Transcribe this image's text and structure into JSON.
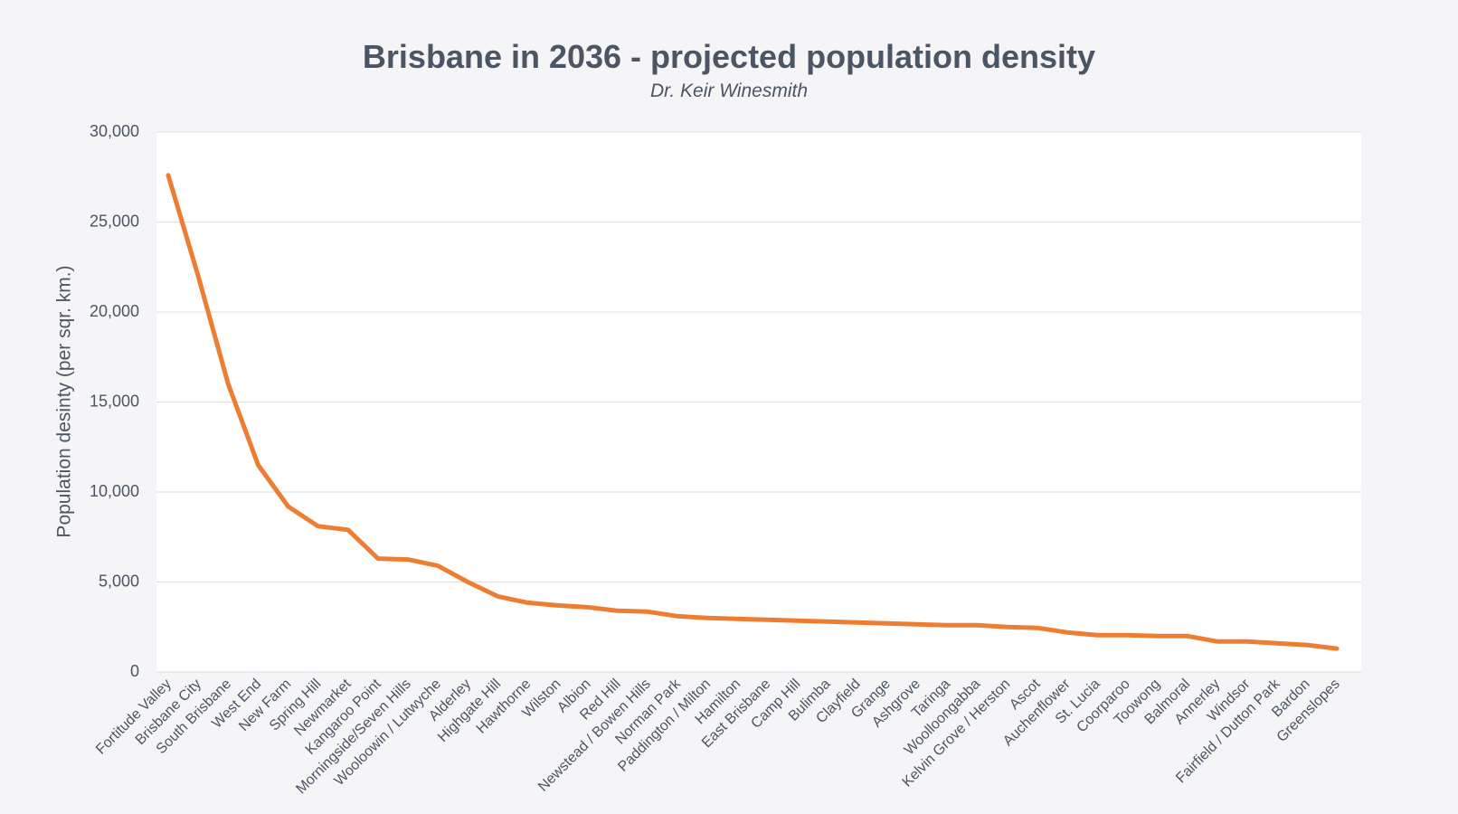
{
  "chart_data": {
    "type": "line",
    "title": "Brisbane in 2036 - projected population density",
    "subtitle": "Dr. Keir Winesmith",
    "xlabel": "",
    "ylabel": "Population desinty (per  sqr. km.)",
    "ylim": [
      0,
      30000
    ],
    "yticks": [
      "0",
      "5,000",
      "10,000",
      "15,000",
      "20,000",
      "25,000",
      "30,000"
    ],
    "grid": true,
    "legend": "none",
    "line_color": "#ed7d31",
    "categories": [
      "Fortitude Valley",
      "Brisbane City",
      "South Brisbane",
      "West End",
      "New Farm",
      "Spring Hill",
      "Newmarket",
      "Kangaroo Point",
      "Morningside/Seven Hills",
      "Wooloowin / Lutwyche",
      "Alderley",
      "Highgate Hill",
      "Hawthorne",
      "Wilston",
      "Albion",
      "Red Hill",
      "Newstead / Bowen Hills",
      "Norman Park",
      "Paddington / Milton",
      "Hamilton",
      "East Brisbane",
      "Camp Hill",
      "Bulimba",
      "Clayfield",
      "Grange",
      "Ashgrove",
      "Taringa",
      "Woolloongabba",
      "Kelvin Grove / Herston",
      "Ascot",
      "Auchenflower",
      "St. Lucia",
      "Coorparoo",
      "Toowong",
      "Balmoral",
      "Annerley",
      "Windsor",
      "Fairfield / Dutton Park",
      "Bardon",
      "Greenslopes"
    ],
    "series": [
      {
        "values": [
          27600,
          22000,
          16000,
          11500,
          9200,
          8100,
          7900,
          6300,
          6250,
          5900,
          5000,
          4200,
          3850,
          3700,
          3600,
          3400,
          3350,
          3100,
          3000,
          2950,
          2900,
          2850,
          2800,
          2750,
          2700,
          2650,
          2600,
          2600,
          2500,
          2450,
          2200,
          2050,
          2050,
          2000,
          2000,
          1700,
          1700,
          1600,
          1500,
          1300
        ]
      }
    ]
  }
}
